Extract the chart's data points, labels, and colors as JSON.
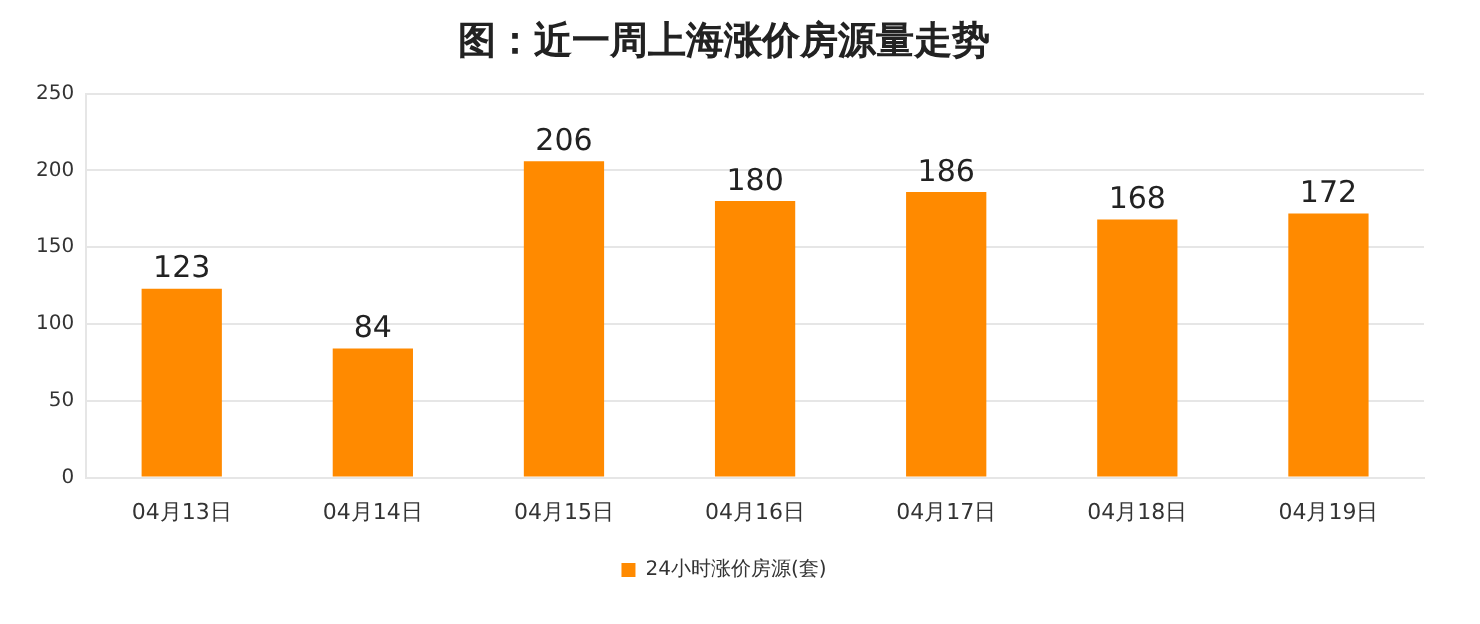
{
  "chart_data": {
    "type": "bar",
    "title": "图：近一周上海涨价房源量走势",
    "categories": [
      "04月13日",
      "04月14日",
      "04月15日",
      "04月16日",
      "04月17日",
      "04月18日",
      "04月19日"
    ],
    "series": [
      {
        "name": "24小时涨价房源(套)",
        "color": "#ff8a00",
        "values": [
          123,
          84,
          206,
          180,
          186,
          168,
          172
        ]
      }
    ],
    "ylim": [
      0,
      250
    ],
    "yticks": [
      0,
      50,
      100,
      150,
      200,
      250
    ],
    "grid": "y",
    "legend": "bottom",
    "data_labels": true
  }
}
